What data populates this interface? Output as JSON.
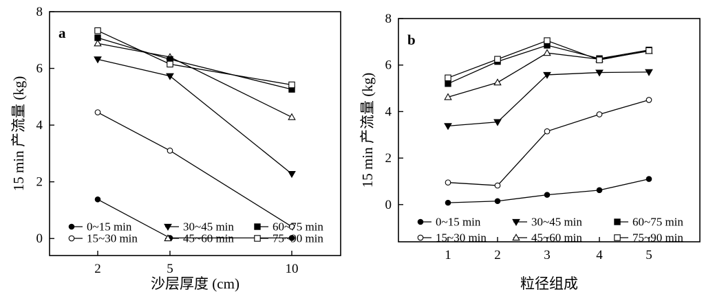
{
  "chart_data": [
    {
      "type": "line",
      "panel": "a",
      "xlabel": "沙层厚度 (cm)",
      "ylabel": "15 min 产流量 (kg)",
      "x_categories": [
        "2",
        "5",
        "10"
      ],
      "ylim": [
        -0.6,
        8
      ],
      "yticks": [
        "0",
        "2",
        "4",
        "6",
        "8"
      ],
      "grid": false,
      "legend_position": "bottom",
      "series": [
        {
          "name": "0~15 min",
          "marker": "filled-circle",
          "values": [
            1.38,
            0.02,
            0.02
          ]
        },
        {
          "name": "15~30 min",
          "marker": "open-circle",
          "values": [
            4.45,
            3.1,
            0.42
          ]
        },
        {
          "name": "30~45 min",
          "marker": "filled-triangle-down",
          "values": [
            6.32,
            5.73,
            2.28
          ]
        },
        {
          "name": "45~60 min",
          "marker": "open-triangle-up",
          "values": [
            6.88,
            6.4,
            4.28
          ]
        },
        {
          "name": "60~75 min",
          "marker": "filled-square",
          "values": [
            7.08,
            6.32,
            5.26
          ]
        },
        {
          "name": "75~90 min",
          "marker": "open-square",
          "values": [
            7.33,
            6.15,
            5.42
          ]
        }
      ]
    },
    {
      "type": "line",
      "panel": "b",
      "xlabel": "粒径组成",
      "ylabel": "15 min 产流量 (kg)",
      "x_categories": [
        "1",
        "2",
        "3",
        "4",
        "5"
      ],
      "ylim": [
        -1.6,
        8
      ],
      "yticks": [
        "0",
        "2",
        "4",
        "6",
        "8"
      ],
      "grid": false,
      "legend_position": "bottom",
      "series": [
        {
          "name": "0~15 min",
          "marker": "filled-circle",
          "values": [
            0.08,
            0.15,
            0.42,
            0.62,
            1.1
          ]
        },
        {
          "name": "15~30 min",
          "marker": "open-circle",
          "values": [
            0.95,
            0.82,
            3.15,
            3.88,
            4.5
          ]
        },
        {
          "name": "30~45 min",
          "marker": "filled-triangle-down",
          "values": [
            3.38,
            3.55,
            5.58,
            5.68,
            5.7
          ]
        },
        {
          "name": "45~60 min",
          "marker": "open-triangle-up",
          "values": [
            4.62,
            5.25,
            6.52,
            6.25,
            6.6
          ]
        },
        {
          "name": "60~75 min",
          "marker": "filled-square",
          "values": [
            5.2,
            6.15,
            6.85,
            6.28,
            6.65
          ]
        },
        {
          "name": "75~90 min",
          "marker": "open-square",
          "values": [
            5.45,
            6.25,
            7.05,
            6.22,
            6.62
          ]
        }
      ]
    }
  ]
}
